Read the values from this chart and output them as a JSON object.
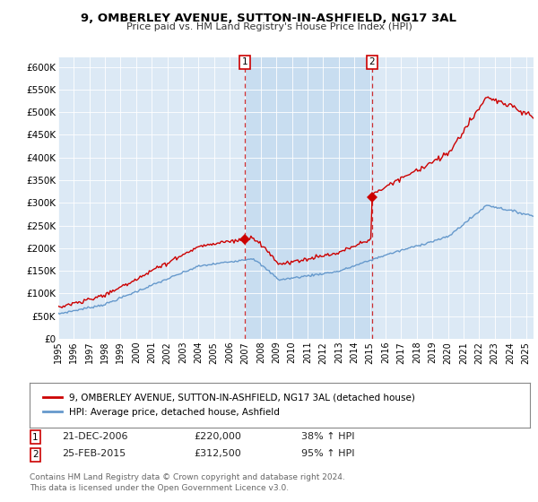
{
  "title": "9, OMBERLEY AVENUE, SUTTON-IN-ASHFIELD, NG17 3AL",
  "subtitle": "Price paid vs. HM Land Registry's House Price Index (HPI)",
  "bg_color": "#dce9f5",
  "highlight_color": "#c8ddf0",
  "ylim": [
    0,
    620000
  ],
  "yticks": [
    0,
    50000,
    100000,
    150000,
    200000,
    250000,
    300000,
    350000,
    400000,
    450000,
    500000,
    550000,
    600000
  ],
  "ytick_labels": [
    "£0",
    "£50K",
    "£100K",
    "£150K",
    "£200K",
    "£250K",
    "£300K",
    "£350K",
    "£400K",
    "£450K",
    "£500K",
    "£550K",
    "£600K"
  ],
  "hpi_color": "#6699cc",
  "price_color": "#cc0000",
  "purchase1_x": 2006.97,
  "purchase1_y": 220000,
  "purchase2_x": 2015.12,
  "purchase2_y": 312500,
  "legend_house_label": "9, OMBERLEY AVENUE, SUTTON-IN-ASHFIELD, NG17 3AL (detached house)",
  "legend_hpi_label": "HPI: Average price, detached house, Ashfield",
  "copyright": "Contains HM Land Registry data © Crown copyright and database right 2024.\nThis data is licensed under the Open Government Licence v3.0.",
  "xmin": 1995,
  "xmax": 2025.5
}
